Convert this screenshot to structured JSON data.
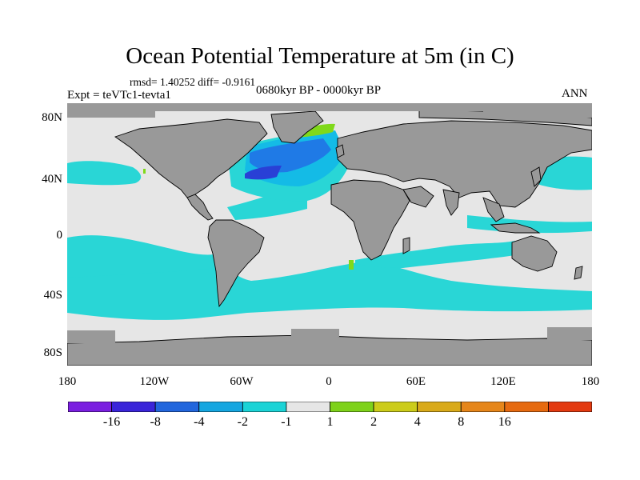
{
  "title": "Ocean Potential Temperature at 5m (in C)",
  "stats": "rmsd= 1.40252 diff= -0.9161",
  "experiment": "Expt = teVTc1-tevta1",
  "period": "0680kyr BP - 0000kyr BP",
  "season": "ANN",
  "colors": {
    "land": "#999999",
    "ocean_neutral": "#e6e6e6",
    "cool_1": "#29d6d6",
    "cool_2": "#14bbe6",
    "cool_4": "#1f7ae6",
    "cool_8": "#2940d6",
    "cool_16": "#5a20e0",
    "warm_1": "#80d91a"
  },
  "map": {
    "lat_labels": [
      "80N",
      "40N",
      "0",
      "40S",
      "80S"
    ],
    "lon_labels": [
      "180",
      "120W",
      "60W",
      "0",
      "60E",
      "120E",
      "180"
    ]
  },
  "colorbar": {
    "colors": [
      "#7a1fe0",
      "#3a25d9",
      "#2266dd",
      "#15a6e0",
      "#1bd3d6",
      "#e6e6e6",
      "#7ed21a",
      "#cccc1a",
      "#d9aa1a",
      "#e6861a",
      "#e66a10",
      "#e33a10"
    ],
    "labels": [
      "-16",
      "-8",
      "-4",
      "-2",
      "-1",
      "1",
      "2",
      "4",
      "8",
      "16"
    ]
  }
}
